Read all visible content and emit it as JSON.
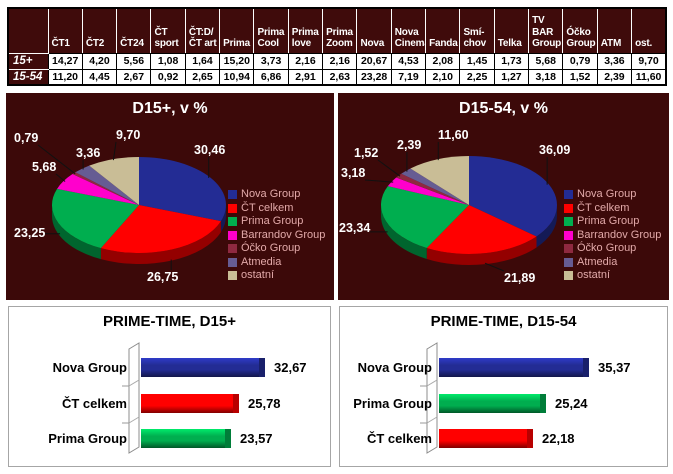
{
  "table": {
    "corner": "",
    "columns": [
      "ČT1",
      "ČT2",
      "ČT24",
      "ČT\nsport",
      "ČT:D/\nČT art",
      "Prima",
      "Prima\nCool",
      "Prima\nlove",
      "Prima\nZoom",
      "Nova",
      "Nova\nCinema",
      "Fanda",
      "Smí-\nchov",
      "Telka",
      "TV BAR\nGroup",
      "Óčko\nGroup",
      "ATM",
      "ost."
    ],
    "rows": [
      {
        "label": "15+",
        "values": [
          "14,27",
          "4,20",
          "5,56",
          "1,08",
          "1,64",
          "15,20",
          "3,73",
          "2,16",
          "2,16",
          "20,67",
          "4,53",
          "2,08",
          "1,45",
          "1,73",
          "5,68",
          "0,79",
          "3,36",
          "9,70"
        ]
      },
      {
        "label": "15-54",
        "values": [
          "11,20",
          "4,45",
          "2,67",
          "0,92",
          "2,65",
          "10,94",
          "6,86",
          "2,91",
          "2,63",
          "23,28",
          "7,19",
          "2,10",
          "2,25",
          "1,27",
          "3,18",
          "1,52",
          "2,39",
          "11,60"
        ]
      }
    ]
  },
  "chart_data": [
    {
      "type": "pie",
      "title": "D15+, v %",
      "unit": "%",
      "legend_position": "right",
      "series": [
        {
          "name": "Nova Group",
          "value": 30.46,
          "label": "30,46",
          "color": "#232C94"
        },
        {
          "name": "ČT celkem",
          "value": 26.75,
          "label": "26,75",
          "color": "#FF0000"
        },
        {
          "name": "Prima Group",
          "value": 23.25,
          "label": "23,25",
          "color": "#00AE4F"
        },
        {
          "name": "Barrandov Group",
          "value": 5.68,
          "label": "5,68",
          "color": "#FF00CC"
        },
        {
          "name": "Óčko Group",
          "value": 0.79,
          "label": "0,79",
          "color": "#8E2940"
        },
        {
          "name": "Atmedia",
          "value": 3.36,
          "label": "3,36",
          "color": "#665C93"
        },
        {
          "name": "ostatní",
          "value": 9.7,
          "label": "9,70",
          "color": "#C9BD96"
        }
      ]
    },
    {
      "type": "pie",
      "title": "D15-54, v %",
      "unit": "%",
      "legend_position": "right",
      "series": [
        {
          "name": "Nova Group",
          "value": 36.09,
          "label": "36,09",
          "color": "#232C94"
        },
        {
          "name": "ČT celkem",
          "value": 21.89,
          "label": "21,89",
          "color": "#FF0000"
        },
        {
          "name": "Prima Group",
          "value": 23.34,
          "label": "23,34",
          "color": "#00AE4F"
        },
        {
          "name": "Barrandov Group",
          "value": 3.18,
          "label": "3,18",
          "color": "#FF00CC"
        },
        {
          "name": "Óčko Group",
          "value": 1.52,
          "label": "1,52",
          "color": "#8E2940"
        },
        {
          "name": "Atmedia",
          "value": 2.39,
          "label": "2,39",
          "color": "#665C93"
        },
        {
          "name": "ostatní",
          "value": 11.6,
          "label": "11,60",
          "color": "#C9BD96"
        }
      ]
    },
    {
      "type": "bar",
      "title": "PRIME-TIME, D15+",
      "orientation": "horizontal",
      "categories": [
        "Nova Group",
        "ČT celkem",
        "Prima Group"
      ],
      "values": [
        32.67,
        25.78,
        23.57
      ],
      "value_labels": [
        "32,67",
        "25,78",
        "23,57"
      ],
      "colors": [
        "#232C94",
        "#FF0000",
        "#00AE4F"
      ]
    },
    {
      "type": "bar",
      "title": "PRIME-TIME, D15-54",
      "orientation": "horizontal",
      "categories": [
        "Nova Group",
        "Prima Group",
        "ČT celkem"
      ],
      "values": [
        35.37,
        25.24,
        22.18
      ],
      "value_labels": [
        "35,37",
        "25,24",
        "22,18"
      ],
      "colors": [
        "#232C94",
        "#00AE4F",
        "#FF0000"
      ]
    }
  ],
  "colors": {
    "panel_maroon": "#3C0909",
    "table_maroon": "#3F0B0B",
    "nova_navy": "#232C94",
    "ct_red": "#FF0000",
    "prima_green": "#00AE4F",
    "barrandov_magenta": "#FF00CC",
    "ocko_dark_red": "#8E2940",
    "atmedia_purple": "#665C93",
    "ostatni_tan": "#C9BD96",
    "legend_text": "#E2A9A9"
  }
}
